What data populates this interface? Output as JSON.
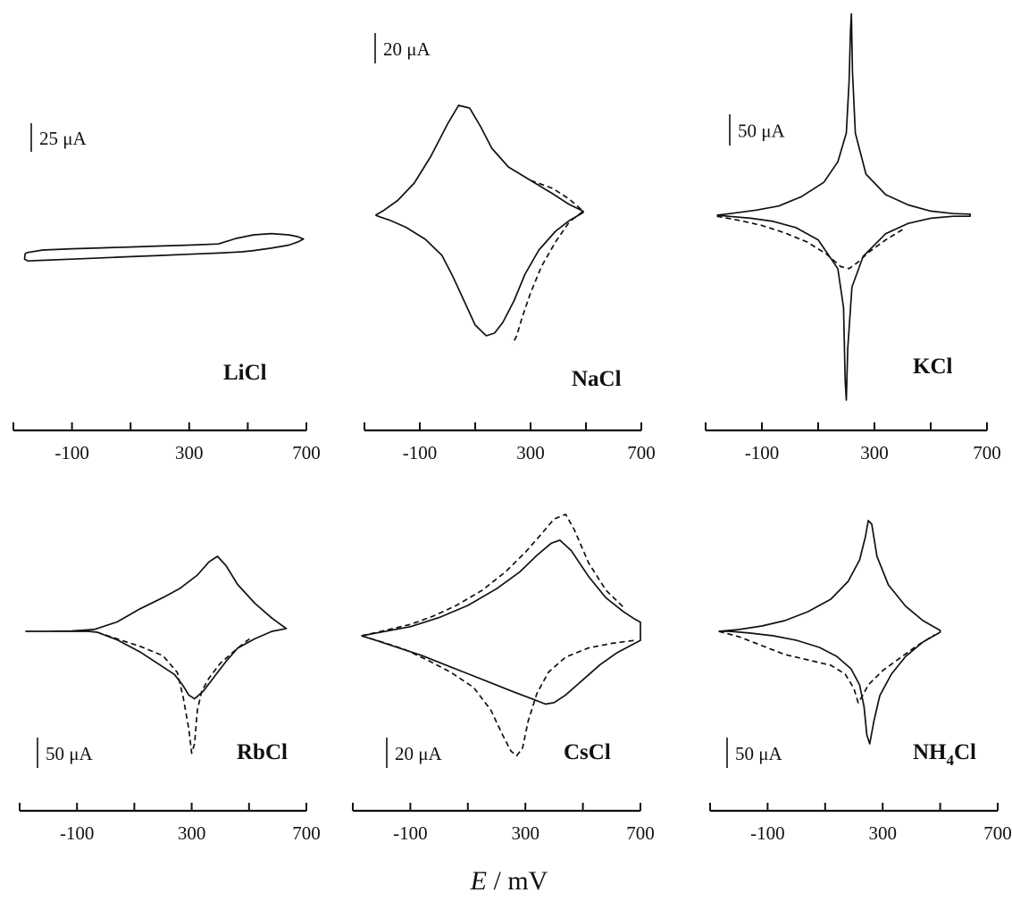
{
  "figure": {
    "x_label_symbol": "E",
    "x_label_unit": " / mV"
  },
  "chart_data": [
    {
      "type": "line",
      "title": "LiCl",
      "scale_bar": "25 μA",
      "xlim": [
        -300,
        700
      ],
      "xticks": [
        -100,
        300,
        700
      ],
      "series": [
        {
          "style": "solid",
          "x": [
            -260,
            -250,
            -200,
            -100,
            0,
            100,
            200,
            300,
            400,
            420,
            460,
            520,
            580,
            640,
            670,
            690,
            670,
            640,
            580,
            520,
            480,
            440,
            400,
            300,
            200,
            100,
            0,
            -100,
            -200,
            -250,
            -262,
            -260
          ],
          "y": [
            -0.56,
            -0.52,
            -0.44,
            -0.4,
            -0.37,
            -0.34,
            -0.31,
            -0.28,
            -0.24,
            -0.18,
            -0.06,
            0.06,
            0.1,
            0.06,
            0.0,
            -0.08,
            -0.18,
            -0.28,
            -0.38,
            -0.46,
            -0.5,
            -0.52,
            -0.54,
            -0.58,
            -0.62,
            -0.66,
            -0.7,
            -0.74,
            -0.78,
            -0.8,
            -0.74,
            -0.56
          ]
        }
      ]
    },
    {
      "type": "line",
      "title": "NaCl",
      "scale_bar": "20 μA",
      "xlim": [
        -300,
        700
      ],
      "xticks": [
        -100,
        300,
        700
      ],
      "series": [
        {
          "style": "solid",
          "x": [
            -260,
            -230,
            -180,
            -120,
            -60,
            0,
            40,
            80,
            120,
            160,
            220,
            300,
            380,
            440,
            490,
            490,
            440,
            390,
            330,
            280,
            240,
            200,
            170,
            140,
            100,
            60,
            20,
            -20,
            -80,
            -150,
            -210,
            -245,
            -260
          ],
          "y": [
            0.0,
            0.18,
            0.55,
            1.2,
            2.2,
            3.4,
            4.1,
            4.0,
            3.3,
            2.5,
            1.8,
            1.3,
            0.8,
            0.4,
            0.15,
            0.1,
            -0.2,
            -0.6,
            -1.3,
            -2.2,
            -3.2,
            -4.0,
            -4.4,
            -4.5,
            -4.1,
            -3.2,
            -2.3,
            -1.5,
            -0.9,
            -0.45,
            -0.18,
            -0.06,
            0.0
          ]
        },
        {
          "style": "dashed",
          "x": [
            300,
            380,
            440,
            490,
            440,
            390,
            340,
            300,
            270,
            250,
            235
          ],
          "y": [
            1.3,
            1.0,
            0.6,
            0.15,
            -0.25,
            -1.0,
            -1.9,
            -2.9,
            -3.8,
            -4.5,
            -4.8
          ]
        }
      ]
    },
    {
      "type": "line",
      "title": "KCl",
      "scale_bar": "50 μA",
      "xlim": [
        -300,
        700
      ],
      "xticks": [
        -100,
        300,
        700
      ],
      "series": [
        {
          "style": "solid",
          "x": [
            -260,
            -200,
            -120,
            -40,
            40,
            120,
            170,
            200,
            210,
            215,
            218,
            222,
            232,
            270,
            340,
            420,
            500,
            580,
            640,
            640,
            580,
            500,
            420,
            340,
            260,
            220,
            205,
            200,
            196,
            190,
            170,
            100,
            20,
            -60,
            -140,
            -220,
            -260
          ],
          "y": [
            0.0,
            0.1,
            0.25,
            0.45,
            0.9,
            1.6,
            2.6,
            4.0,
            6.5,
            9.0,
            9.8,
            7.0,
            4.0,
            2.0,
            1.0,
            0.5,
            0.2,
            0.08,
            0.05,
            -0.05,
            -0.05,
            -0.15,
            -0.4,
            -0.9,
            -2.0,
            -3.5,
            -6.5,
            -9.0,
            -8.0,
            -4.5,
            -2.6,
            -1.2,
            -0.6,
            -0.3,
            -0.15,
            -0.05,
            0.0
          ]
        },
        {
          "style": "dashed",
          "x": [
            -260,
            -180,
            -100,
            -20,
            60,
            130,
            180,
            210,
            240,
            280,
            340,
            400
          ],
          "y": [
            -0.05,
            -0.25,
            -0.5,
            -0.85,
            -1.3,
            -1.9,
            -2.5,
            -2.6,
            -2.3,
            -1.8,
            -1.2,
            -0.7
          ]
        }
      ]
    },
    {
      "type": "line",
      "title": "RbCl",
      "scale_bar": "50 μA",
      "xlim": [
        -300,
        700
      ],
      "xticks": [
        -100,
        300,
        700
      ],
      "series": [
        {
          "style": "solid",
          "x": [
            -280,
            -200,
            -120,
            -40,
            40,
            120,
            200,
            260,
            320,
            360,
            390,
            420,
            460,
            520,
            580,
            630,
            580,
            520,
            460,
            420,
            380,
            340,
            310,
            290,
            270,
            240,
            180,
            120,
            40,
            -30,
            -60,
            -120,
            -200,
            -280
          ],
          "y": [
            0.0,
            0.0,
            0.02,
            0.1,
            0.5,
            1.2,
            1.8,
            2.3,
            3.0,
            3.7,
            4.0,
            3.5,
            2.5,
            1.5,
            0.7,
            0.15,
            0.0,
            -0.4,
            -0.9,
            -1.6,
            -2.4,
            -3.2,
            -3.6,
            -3.4,
            -2.9,
            -2.3,
            -1.7,
            -1.1,
            -0.45,
            -0.05,
            0.0,
            0.0,
            0.0,
            0.0
          ]
        },
        {
          "style": "dashed",
          "x": [
            -30,
            40,
            120,
            200,
            250,
            270,
            290,
            300,
            310,
            320,
            335,
            360,
            400,
            460,
            510
          ],
          "y": [
            -0.05,
            -0.4,
            -0.8,
            -1.3,
            -2.2,
            -3.5,
            -5.2,
            -6.5,
            -6.0,
            -4.2,
            -3.2,
            -2.5,
            -1.7,
            -0.9,
            -0.3
          ]
        }
      ]
    },
    {
      "type": "line",
      "title": "CsCl",
      "scale_bar": "20 μA",
      "xlim": [
        -300,
        700
      ],
      "xticks": [
        -100,
        300,
        700
      ],
      "series": [
        {
          "style": "solid",
          "x": [
            -270,
            -200,
            -100,
            0,
            100,
            200,
            280,
            340,
            390,
            420,
            460,
            520,
            580,
            640,
            680,
            700,
            700,
            680,
            620,
            560,
            500,
            440,
            400,
            370,
            330,
            260,
            180,
            100,
            20,
            -60,
            -140,
            -220,
            -270
          ],
          "y": [
            0.0,
            0.25,
            0.6,
            1.2,
            2.0,
            3.1,
            4.2,
            5.3,
            6.1,
            6.3,
            5.6,
            3.9,
            2.5,
            1.6,
            1.1,
            0.9,
            -0.3,
            -0.5,
            -1.1,
            -1.9,
            -2.9,
            -3.9,
            -4.4,
            -4.5,
            -4.2,
            -3.7,
            -3.1,
            -2.5,
            -1.9,
            -1.3,
            -0.8,
            -0.3,
            0.0
          ]
        },
        {
          "style": "dashed",
          "x": [
            -270,
            -200,
            -100,
            -20,
            60,
            150,
            230,
            300,
            360,
            400,
            440,
            470,
            520,
            580,
            640
          ],
          "y": [
            0.0,
            0.3,
            0.75,
            1.3,
            2.0,
            3.0,
            4.2,
            5.5,
            6.8,
            7.7,
            8.0,
            7.0,
            4.8,
            3.0,
            1.9
          ]
        },
        {
          "style": "dashed",
          "x": [
            -270,
            -200,
            -120,
            -40,
            40,
            120,
            180,
            220,
            250,
            270,
            290,
            310,
            340,
            380,
            440,
            520,
            600,
            680
          ],
          "y": [
            0.0,
            -0.4,
            -0.9,
            -1.6,
            -2.4,
            -3.4,
            -4.9,
            -6.5,
            -7.6,
            -7.9,
            -7.4,
            -5.6,
            -3.8,
            -2.4,
            -1.4,
            -0.8,
            -0.5,
            -0.3
          ]
        }
      ]
    },
    {
      "type": "line",
      "title": "NH4Cl",
      "title_main": "NH",
      "title_sub": "4",
      "title_tail": "Cl",
      "scale_bar": "50 μA",
      "xlim": [
        -300,
        700
      ],
      "xticks": [
        -100,
        300,
        700
      ],
      "series": [
        {
          "style": "solid",
          "x": [
            -270,
            -200,
            -120,
            -40,
            40,
            120,
            180,
            220,
            240,
            250,
            262,
            280,
            320,
            380,
            440,
            500,
            500,
            440,
            380,
            330,
            290,
            270,
            255,
            245,
            235,
            220,
            190,
            140,
            80,
            0,
            -80,
            -160,
            -230,
            -270
          ],
          "y": [
            0.0,
            0.1,
            0.3,
            0.6,
            1.1,
            1.8,
            2.8,
            4.0,
            5.3,
            6.2,
            6.0,
            4.2,
            2.6,
            1.4,
            0.6,
            0.05,
            -0.05,
            -0.6,
            -1.4,
            -2.4,
            -3.6,
            -5.0,
            -6.3,
            -5.8,
            -4.2,
            -3.0,
            -2.1,
            -1.4,
            -0.9,
            -0.5,
            -0.25,
            -0.1,
            0.0,
            0.0
          ]
        },
        {
          "style": "dashed",
          "x": [
            -270,
            -200,
            -120,
            -40,
            40,
            120,
            170,
            200,
            215,
            230,
            250,
            300,
            360,
            420,
            480
          ],
          "y": [
            0.0,
            -0.3,
            -0.8,
            -1.3,
            -1.6,
            -1.9,
            -2.4,
            -3.2,
            -4.0,
            -3.6,
            -3.0,
            -2.2,
            -1.5,
            -0.8,
            -0.2
          ]
        }
      ]
    }
  ]
}
